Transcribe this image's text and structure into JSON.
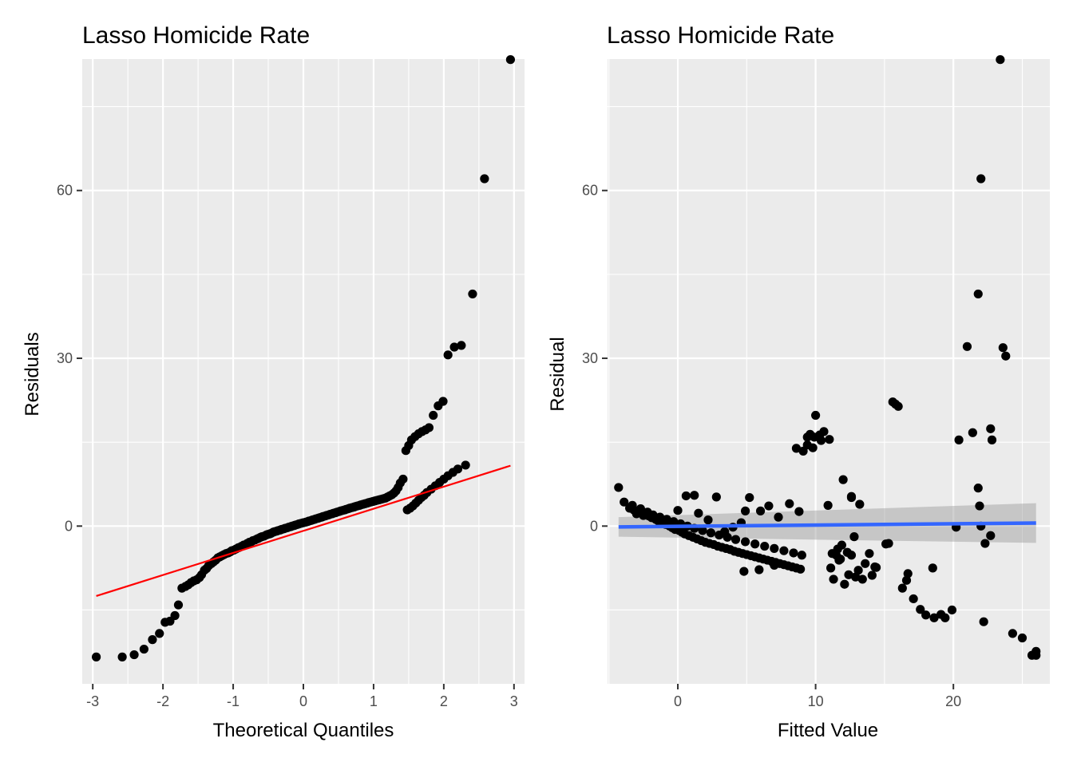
{
  "chart_data": [
    {
      "type": "scatter",
      "title": "Lasso Homicide Rate",
      "xlabel": "Theoretical Quantiles",
      "ylabel": "Residuals",
      "xlim": [
        -3.15,
        3.15
      ],
      "ylim": [
        -28.2,
        83.5
      ],
      "x_ticks": [
        -3,
        -2,
        -1,
        0,
        1,
        2,
        3
      ],
      "x_tick_labels": [
        "-3",
        "-2",
        "-1",
        "0",
        "1",
        "2",
        "3"
      ],
      "y_ticks": [
        0,
        30,
        60
      ],
      "y_tick_labels": [
        "0",
        "30",
        "60"
      ],
      "grid": true,
      "point_color": "#000000",
      "reference_line": {
        "color": "#ff0000",
        "x": [
          -2.95,
          2.95
        ],
        "y": [
          -12.5,
          10.8
        ]
      },
      "points": {
        "x": [
          -2.95,
          -2.58,
          -2.41,
          -2.27,
          -2.15,
          -2.05,
          -1.97,
          -1.9,
          -1.83,
          -1.78,
          -1.73,
          -1.68,
          -1.64,
          -1.6,
          -1.56,
          -1.52,
          -1.48,
          -1.45,
          -1.41,
          -1.38,
          -1.35,
          -1.31,
          -1.28,
          -1.25,
          -1.22,
          -1.19,
          -1.16,
          -1.13,
          -1.1,
          -1.07,
          -1.04,
          -1.02,
          -0.99,
          -0.96,
          -0.93,
          -0.91,
          -0.88,
          -0.85,
          -0.82,
          -0.8,
          -0.77,
          -0.74,
          -0.72,
          -0.69,
          -0.66,
          -0.64,
          -0.61,
          -0.59,
          -0.56,
          -0.53,
          -0.51,
          -0.48,
          -0.46,
          -0.43,
          -0.41,
          -0.38,
          -0.36,
          -0.33,
          -0.31,
          -0.28,
          -0.26,
          -0.23,
          -0.21,
          -0.18,
          -0.16,
          -0.13,
          -0.11,
          -0.08,
          -0.06,
          -0.03,
          0.0,
          0.03,
          0.06,
          0.08,
          0.11,
          0.13,
          0.16,
          0.18,
          0.21,
          0.23,
          0.26,
          0.28,
          0.31,
          0.33,
          0.36,
          0.38,
          0.41,
          0.43,
          0.46,
          0.48,
          0.51,
          0.53,
          0.56,
          0.59,
          0.61,
          0.64,
          0.66,
          0.69,
          0.72,
          0.74,
          0.77,
          0.8,
          0.82,
          0.85,
          0.88,
          0.91,
          0.93,
          0.96,
          0.99,
          1.02,
          1.05,
          1.08,
          1.11,
          1.14,
          1.17,
          1.2,
          1.23,
          1.26,
          1.29,
          1.32,
          1.35,
          1.38,
          1.42,
          1.46,
          1.5,
          1.54,
          1.59,
          1.64,
          1.69,
          1.74,
          1.79,
          1.85,
          1.92,
          1.99,
          2.06,
          2.15,
          2.25,
          2.41,
          2.58,
          2.95,
          1.48,
          1.52,
          1.56,
          1.6,
          1.64,
          1.68,
          1.72,
          1.76,
          1.82,
          1.88,
          1.94,
          2.0,
          2.06,
          2.13,
          2.2,
          2.31
        ],
        "y": [
          -23.4,
          -23.4,
          -23.0,
          -22.0,
          -20.3,
          -19.2,
          -17.2,
          -17.0,
          -16.0,
          -14.1,
          -11.1,
          -10.8,
          -10.5,
          -10.1,
          -9.8,
          -9.6,
          -9.2,
          -8.7,
          -7.9,
          -7.6,
          -7.1,
          -6.7,
          -6.4,
          -6.1,
          -5.7,
          -5.5,
          -5.3,
          -5.1,
          -4.9,
          -4.8,
          -4.6,
          -4.4,
          -4.3,
          -4.1,
          -3.9,
          -3.8,
          -3.6,
          -3.4,
          -3.3,
          -3.1,
          -2.9,
          -2.8,
          -2.6,
          -2.5,
          -2.3,
          -2.2,
          -2.0,
          -1.9,
          -1.8,
          -1.6,
          -1.5,
          -1.4,
          -1.3,
          -1.1,
          -1.0,
          -0.9,
          -0.8,
          -0.7,
          -0.6,
          -0.5,
          -0.4,
          -0.3,
          -0.2,
          -0.1,
          0.0,
          0.1,
          0.2,
          0.3,
          0.4,
          0.5,
          0.6,
          0.7,
          0.8,
          0.9,
          1.0,
          1.1,
          1.2,
          1.3,
          1.4,
          1.5,
          1.6,
          1.7,
          1.8,
          1.9,
          2.0,
          2.1,
          2.2,
          2.3,
          2.4,
          2.5,
          2.6,
          2.7,
          2.8,
          2.9,
          3.0,
          3.1,
          3.2,
          3.3,
          3.4,
          3.5,
          3.6,
          3.7,
          3.8,
          3.9,
          4.0,
          4.1,
          4.2,
          4.3,
          4.4,
          4.5,
          4.6,
          4.7,
          4.8,
          4.9,
          5.0,
          5.2,
          5.4,
          5.6,
          5.9,
          6.3,
          6.9,
          7.7,
          8.4,
          13.5,
          14.4,
          15.4,
          16.0,
          16.5,
          16.9,
          17.2,
          17.6,
          19.8,
          21.5,
          22.3,
          30.6,
          32.0,
          32.3,
          41.5,
          62.1,
          83.4,
          2.9,
          3.2,
          3.6,
          4.1,
          4.6,
          5.1,
          5.5,
          6.0,
          6.6,
          7.2,
          7.8,
          8.4,
          9.0,
          9.6,
          10.2,
          10.9
        ]
      }
    },
    {
      "type": "scatter",
      "title": "Lasso Homicide Rate",
      "xlabel": "Fitted Value",
      "ylabel": "Residual",
      "xlim": [
        -5.1,
        27.0
      ],
      "ylim": [
        -28.2,
        83.5
      ],
      "x_ticks": [
        0,
        10,
        20
      ],
      "x_tick_labels": [
        "0",
        "10",
        "20"
      ],
      "y_ticks": [
        0,
        30,
        60
      ],
      "y_tick_labels": [
        "0",
        "30",
        "60"
      ],
      "grid": true,
      "point_color": "#000000",
      "smooth_line": {
        "color": "#3366ff",
        "x": [
          -4.3,
          26.0
        ],
        "y": [
          -0.15,
          0.55
        ],
        "band_color": "#999999",
        "band_lower": [
          -1.9,
          -3.0
        ],
        "band_upper": [
          1.6,
          4.1
        ]
      },
      "points": {
        "x": [
          -4.3,
          -3.5,
          -3.2,
          -2.9,
          -2.6,
          -2.3,
          -2.1,
          -1.9,
          -1.6,
          -1.4,
          -1.1,
          -0.9,
          -0.6,
          -0.4,
          -0.2,
          0.1,
          0.3,
          0.5,
          0.8,
          1.1,
          1.4,
          1.7,
          2.0,
          2.3,
          2.6,
          2.9,
          3.2,
          3.5,
          3.8,
          4.1,
          4.4,
          4.7,
          5.0,
          5.3,
          5.6,
          5.9,
          6.2,
          6.5,
          6.8,
          7.1,
          7.4,
          7.7,
          8.0,
          8.3,
          8.6,
          8.9,
          -3.9,
          -3.3,
          -2.7,
          -2.2,
          -1.8,
          -1.3,
          -0.8,
          -0.3,
          0.2,
          0.7,
          1.2,
          1.8,
          2.4,
          3.0,
          3.6,
          4.2,
          4.9,
          5.6,
          6.3,
          7.0,
          7.7,
          8.4,
          9.0,
          -3.0,
          -2.5,
          -1.5,
          -1.0,
          0.0,
          0.6,
          1.5,
          2.2,
          3.4,
          4.0,
          4.6,
          5.2,
          6.0,
          6.6,
          7.3,
          8.1,
          8.8,
          9.1,
          9.4,
          9.6,
          9.8,
          10.0,
          9.4,
          10.4,
          10.6,
          10.9,
          11.1,
          11.3,
          11.6,
          11.9,
          12.1,
          12.4,
          12.6,
          12.9,
          13.1,
          13.4,
          13.6,
          13.9,
          14.1,
          14.3,
          15.1,
          15.6,
          16.3,
          16.6,
          17.1,
          17.6,
          18.0,
          18.6,
          19.1,
          19.4,
          19.9,
          20.4,
          21.0,
          21.4,
          21.8,
          22.0,
          22.2,
          22.3,
          22.7,
          22.8,
          23.4,
          23.6,
          23.8,
          24.3,
          25.0,
          25.7,
          26.0,
          26.0,
          21.8,
          21.9,
          22.0,
          22.7,
          11.2,
          11.8,
          12.3,
          12.6,
          12.8,
          14.4,
          15.3,
          16.7,
          18.5,
          8.6,
          9.9,
          10.3,
          11.0,
          13.2,
          12.0,
          12.6,
          15.8,
          16.0,
          20.2,
          11.5,
          11.7,
          7.0,
          5.9,
          4.8,
          1.2,
          2.8,
          4.9
        ],
        "y": [
          6.9,
          3.2,
          2.9,
          2.6,
          2.3,
          2.0,
          1.8,
          1.5,
          1.2,
          0.9,
          0.6,
          0.3,
          0.0,
          -0.3,
          -0.6,
          -0.8,
          -1.1,
          -1.4,
          -1.7,
          -2.0,
          -2.3,
          -2.6,
          -2.9,
          -3.1,
          -3.3,
          -3.6,
          -3.8,
          -4.0,
          -4.2,
          -4.5,
          -4.7,
          -4.9,
          -5.1,
          -5.3,
          -5.5,
          -5.7,
          -5.9,
          -6.1,
          -6.3,
          -6.5,
          -6.7,
          -6.9,
          -7.1,
          -7.3,
          -7.5,
          -7.7,
          4.3,
          3.7,
          3.1,
          2.5,
          2.0,
          1.6,
          1.2,
          0.8,
          0.4,
          0.0,
          -0.4,
          -0.8,
          -1.2,
          -1.6,
          -2.0,
          -2.4,
          -2.8,
          -3.2,
          -3.6,
          -4.0,
          -4.4,
          -4.8,
          -5.2,
          2.2,
          1.9,
          1.1,
          0.7,
          2.8,
          5.4,
          2.3,
          1.1,
          -1.0,
          -0.2,
          0.6,
          5.1,
          2.7,
          3.6,
          1.6,
          4.0,
          2.6,
          13.4,
          14.5,
          16.4,
          14.0,
          19.8,
          15.9,
          15.3,
          16.9,
          3.7,
          -7.5,
          -9.5,
          -4.1,
          -3.4,
          -10.4,
          -8.7,
          -5.2,
          -9.1,
          -7.9,
          -9.5,
          -6.7,
          -4.9,
          -8.8,
          -7.3,
          -3.2,
          22.2,
          -11.1,
          -9.7,
          -13.0,
          -14.9,
          -15.9,
          -16.4,
          -15.8,
          -16.4,
          -15.0,
          15.4,
          32.1,
          16.7,
          41.5,
          62.1,
          -17.1,
          -3.1,
          17.4,
          15.4,
          83.4,
          31.9,
          30.4,
          -19.2,
          -20.0,
          -23.1,
          -22.4,
          -23.1,
          6.8,
          3.6,
          0.0,
          -1.7,
          -4.9,
          -5.9,
          -4.7,
          5.1,
          -1.9,
          -7.4,
          -3.1,
          -8.5,
          -7.5,
          13.9,
          15.9,
          16.3,
          15.5,
          3.9,
          8.3,
          5.3,
          21.8,
          21.4,
          -0.2,
          -5.2,
          -6.1,
          -7.0,
          -7.8,
          -8.1,
          5.5,
          5.2,
          2.7
        ]
      }
    }
  ]
}
